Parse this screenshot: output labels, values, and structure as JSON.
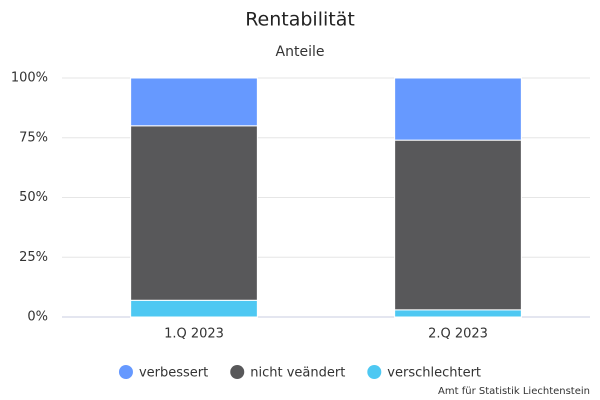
{
  "chart_data": {
    "type": "stacked-bar",
    "title": "Rentabilität",
    "subtitle": "Anteile",
    "categories": [
      "1.Q 2023",
      "2.Q 2023"
    ],
    "series": [
      {
        "name": "verbessert",
        "color": "#6699ff",
        "values": [
          20,
          26
        ]
      },
      {
        "name": "nicht veändert",
        "color": "#58585a",
        "values": [
          73,
          71
        ]
      },
      {
        "name": "verschlechtert",
        "color": "#4ec8f2",
        "values": [
          7,
          3
        ]
      }
    ],
    "ylim": [
      0,
      100
    ],
    "yticks": [
      {
        "value": 0,
        "label": "0%"
      },
      {
        "value": 25,
        "label": "25%"
      },
      {
        "value": 50,
        "label": "50%"
      },
      {
        "value": 75,
        "label": "75%"
      },
      {
        "value": 100,
        "label": "100%"
      }
    ],
    "grid": true,
    "legend": "bottom",
    "credit": "Amt für Statistik Liechtenstein"
  }
}
